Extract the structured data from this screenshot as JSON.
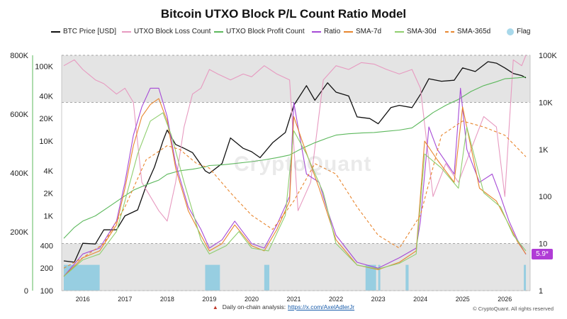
{
  "chart_data": {
    "type": "line",
    "title": "Bitcoin UTXO Block P/L Count Ratio Model",
    "x_ticks": [
      "2016",
      "2017",
      "2018",
      "2019",
      "2020",
      "2021",
      "2022",
      "2023",
      "2024",
      "2025",
      "2026"
    ],
    "x_range": [
      2015.5,
      2026.6
    ],
    "y_axes": {
      "price_log": {
        "ticks": [
          "100",
          "200",
          "400",
          "1K",
          "2K",
          "4K",
          "10K",
          "20K",
          "40K",
          "100K"
        ],
        "range": [
          100,
          140000
        ],
        "scale": "log"
      },
      "count_linear": {
        "ticks": [
          "0",
          "200K",
          "400K",
          "600K",
          "800K"
        ],
        "range": [
          0,
          800000
        ],
        "scale": "linear"
      },
      "ratio_log": {
        "ticks": [
          "1",
          "10",
          "100",
          "1K",
          "10K",
          "100K"
        ],
        "range": [
          1,
          100000
        ],
        "scale": "log"
      }
    },
    "bands": [
      {
        "axis": "ratio_log",
        "from": 1,
        "to": 10,
        "color": "#e4e4e4"
      },
      {
        "axis": "ratio_log",
        "from": 10000,
        "to": 100000,
        "color": "#e4e4e4"
      }
    ],
    "series": [
      {
        "name": "BTC Price [USD]",
        "color": "#111111",
        "axis": "price_log",
        "x": [
          2015.55,
          2015.8,
          2016.0,
          2016.3,
          2016.5,
          2016.8,
          2017.0,
          2017.3,
          2017.5,
          2017.7,
          2017.9,
          2018.0,
          2018.2,
          2018.4,
          2018.6,
          2018.9,
          2019.0,
          2019.3,
          2019.5,
          2019.8,
          2020.0,
          2020.2,
          2020.5,
          2020.8,
          2021.0,
          2021.3,
          2021.5,
          2021.8,
          2022.0,
          2022.3,
          2022.5,
          2022.8,
          2023.0,
          2023.3,
          2023.5,
          2023.8,
          2024.0,
          2024.2,
          2024.5,
          2024.8,
          2025.0,
          2025.3,
          2025.6,
          2025.8,
          2026.0,
          2026.2,
          2026.4,
          2026.5
        ],
        "values": [
          250,
          240,
          430,
          420,
          650,
          650,
          1000,
          1200,
          2500,
          4500,
          10000,
          14000,
          9000,
          8000,
          7000,
          4000,
          3700,
          5000,
          11000,
          8000,
          7200,
          6000,
          9500,
          13000,
          30000,
          55000,
          35000,
          60000,
          45000,
          40000,
          21000,
          20000,
          17000,
          28000,
          30000,
          28000,
          42000,
          68000,
          63000,
          65000,
          95000,
          85000,
          115000,
          110000,
          95000,
          80000,
          75000,
          70000
        ]
      },
      {
        "name": "UTXO Block Loss Count",
        "color": "#e79ac0",
        "axis": "ratio_log",
        "x": [
          2015.55,
          2015.8,
          2016.0,
          2016.3,
          2016.5,
          2016.8,
          2017.0,
          2017.2,
          2017.4,
          2017.6,
          2017.8,
          2018.0,
          2018.2,
          2018.4,
          2018.6,
          2018.8,
          2019.0,
          2019.2,
          2019.5,
          2019.8,
          2020.0,
          2020.3,
          2020.6,
          2020.9,
          2021.1,
          2021.4,
          2021.7,
          2022.0,
          2022.3,
          2022.6,
          2022.9,
          2023.2,
          2023.5,
          2023.8,
          2024.0,
          2024.3,
          2024.6,
          2024.9,
          2025.2,
          2025.5,
          2025.8,
          2026.0,
          2026.2,
          2026.4,
          2026.5
        ],
        "values": [
          60000,
          80000,
          50000,
          30000,
          25000,
          15000,
          20000,
          10000,
          200,
          100,
          50,
          30,
          200,
          3000,
          15000,
          20000,
          50000,
          40000,
          30000,
          40000,
          35000,
          60000,
          40000,
          30000,
          50,
          200,
          30000,
          60000,
          50000,
          70000,
          65000,
          50000,
          40000,
          50000,
          20000,
          100,
          500,
          200,
          1000,
          5000,
          3000,
          100,
          80000,
          60000,
          100000
        ]
      },
      {
        "name": "UTXO Block Profit Count",
        "color": "#5cb85c",
        "axis": "price_log",
        "x": [
          2015.55,
          2015.8,
          2016.0,
          2016.3,
          2016.6,
          2016.9,
          2017.2,
          2017.5,
          2017.8,
          2018.0,
          2018.3,
          2018.6,
          2018.9,
          2019.0,
          2019.3,
          2019.6,
          2020.0,
          2020.3,
          2020.6,
          2020.9,
          2021.2,
          2021.5,
          2021.8,
          2022.0,
          2022.3,
          2022.6,
          2022.9,
          2023.2,
          2023.5,
          2023.8,
          2024.0,
          2024.3,
          2024.6,
          2024.9,
          2025.2,
          2025.5,
          2025.8,
          2026.0,
          2026.3,
          2026.5
        ],
        "values": [
          500,
          700,
          850,
          1000,
          1300,
          1700,
          2200,
          2600,
          3000,
          3600,
          4000,
          4200,
          4500,
          4700,
          4800,
          5000,
          5300,
          5600,
          6000,
          6500,
          8000,
          9500,
          11000,
          12000,
          12500,
          12800,
          13000,
          13500,
          14000,
          15000,
          18000,
          24000,
          30000,
          36000,
          46000,
          55000,
          62000,
          68000,
          70000,
          72000
        ]
      },
      {
        "name": "Ratio",
        "color": "#a64ad6",
        "axis": "ratio_log",
        "x": [
          2015.55,
          2016.0,
          2016.4,
          2016.8,
          2017.0,
          2017.2,
          2017.4,
          2017.6,
          2017.8,
          2018.0,
          2018.2,
          2018.5,
          2018.8,
          2019.0,
          2019.3,
          2019.6,
          2020.0,
          2020.3,
          2020.6,
          2020.9,
          2021.0,
          2021.1,
          2021.3,
          2021.6,
          2021.8,
          2022.0,
          2022.5,
          2023.0,
          2023.5,
          2023.9,
          2024.0,
          2024.2,
          2024.4,
          2024.8,
          2024.95,
          2025.1,
          2025.4,
          2025.7,
          2025.9,
          2026.1,
          2026.3,
          2026.5
        ],
        "values": [
          2,
          6,
          8,
          30,
          200,
          2000,
          8000,
          20000,
          20000,
          5000,
          500,
          60,
          20,
          8,
          12,
          30,
          10,
          8,
          25,
          100,
          10000,
          3000,
          300,
          200,
          50,
          15,
          4,
          3,
          5,
          8,
          30,
          3000,
          1000,
          300,
          20000,
          1000,
          200,
          300,
          100,
          30,
          12,
          5.9
        ]
      },
      {
        "name": "SMA-7d",
        "color": "#e8862e",
        "axis": "ratio_log",
        "x": [
          2015.55,
          2016.0,
          2016.4,
          2016.8,
          2017.0,
          2017.2,
          2017.4,
          2017.6,
          2017.8,
          2018.0,
          2018.2,
          2018.5,
          2018.8,
          2019.0,
          2019.3,
          2019.6,
          2020.0,
          2020.3,
          2020.6,
          2020.9,
          2021.0,
          2021.2,
          2021.6,
          2022.0,
          2022.5,
          2023.0,
          2023.5,
          2023.9,
          2024.1,
          2024.4,
          2024.8,
          2025.0,
          2025.4,
          2025.8,
          2026.1,
          2026.3,
          2026.5
        ],
        "values": [
          2,
          5,
          7,
          25,
          150,
          1200,
          5000,
          9000,
          12000,
          4000,
          400,
          50,
          15,
          7,
          10,
          25,
          9,
          7,
          20,
          80,
          5000,
          1500,
          150,
          12,
          3.5,
          2.8,
          4,
          7,
          1500,
          600,
          200,
          8000,
          150,
          80,
          25,
          11,
          6
        ]
      },
      {
        "name": "SMA-30d",
        "color": "#8fce6e",
        "axis": "ratio_log",
        "x": [
          2015.55,
          2016.0,
          2016.4,
          2016.8,
          2017.0,
          2017.3,
          2017.6,
          2017.9,
          2018.1,
          2018.4,
          2018.8,
          2019.0,
          2019.4,
          2019.7,
          2020.0,
          2020.4,
          2020.8,
          2021.0,
          2021.3,
          2021.7,
          2022.0,
          2022.5,
          2023.0,
          2023.5,
          2023.9,
          2024.1,
          2024.5,
          2024.9,
          2025.1,
          2025.5,
          2025.9,
          2026.2,
          2026.5
        ],
        "values": [
          2,
          4.5,
          6,
          18,
          80,
          800,
          4000,
          6000,
          2000,
          200,
          12,
          6,
          9,
          18,
          8,
          7,
          40,
          2500,
          800,
          120,
          10,
          3.5,
          2.9,
          3.8,
          6,
          800,
          400,
          150,
          3000,
          120,
          60,
          15,
          7
        ]
      },
      {
        "name": "SMA-365d",
        "color": "#e8862e",
        "axis": "ratio_log",
        "dashed": true,
        "x": [
          2015.55,
          2016.0,
          2016.5,
          2017.0,
          2017.5,
          2018.0,
          2018.3,
          2018.7,
          2019.0,
          2019.5,
          2020.0,
          2020.5,
          2021.0,
          2021.5,
          2022.0,
          2022.5,
          2023.0,
          2023.5,
          2024.0,
          2024.5,
          2025.0,
          2025.5,
          2026.0,
          2026.5
        ],
        "values": [
          3,
          5,
          10,
          60,
          600,
          1200,
          1000,
          500,
          400,
          120,
          40,
          20,
          80,
          500,
          300,
          60,
          15,
          8,
          40,
          2000,
          4000,
          3000,
          2000,
          700
        ]
      }
    ],
    "flag_periods": [
      [
        2015.55,
        2016.4
      ],
      [
        2018.9,
        2019.25
      ],
      [
        2020.3,
        2020.42
      ],
      [
        2022.7,
        2022.95
      ],
      [
        2023.0,
        2023.05
      ],
      [
        2023.65,
        2023.72
      ],
      [
        2026.45,
        2026.5
      ]
    ],
    "legend": [
      {
        "label": "BTC Price [USD]",
        "color": "#111111",
        "style": "line"
      },
      {
        "label": "UTXO Block Loss Count",
        "color": "#e79ac0",
        "style": "line"
      },
      {
        "label": "UTXO Block Profit Count",
        "color": "#5cb85c",
        "style": "line"
      },
      {
        "label": "Ratio",
        "color": "#a64ad6",
        "style": "line"
      },
      {
        "label": "SMA-7d",
        "color": "#e8862e",
        "style": "line"
      },
      {
        "label": "SMA-30d",
        "color": "#8fce6e",
        "style": "line"
      },
      {
        "label": "SMA-365d",
        "color": "#e8862e",
        "style": "dashed"
      },
      {
        "label": "Flag",
        "color": "#a8d8ea",
        "style": "dot"
      }
    ],
    "ratio_last_value": "5.9*",
    "legend_placement": "top"
  },
  "footer": {
    "text": "Daily on-chain analysis:",
    "link": "https://x.com/AxelAdlerJr",
    "copyright": "© CryptoQuant. All rights reserved"
  },
  "watermark": "CryptoQuant"
}
